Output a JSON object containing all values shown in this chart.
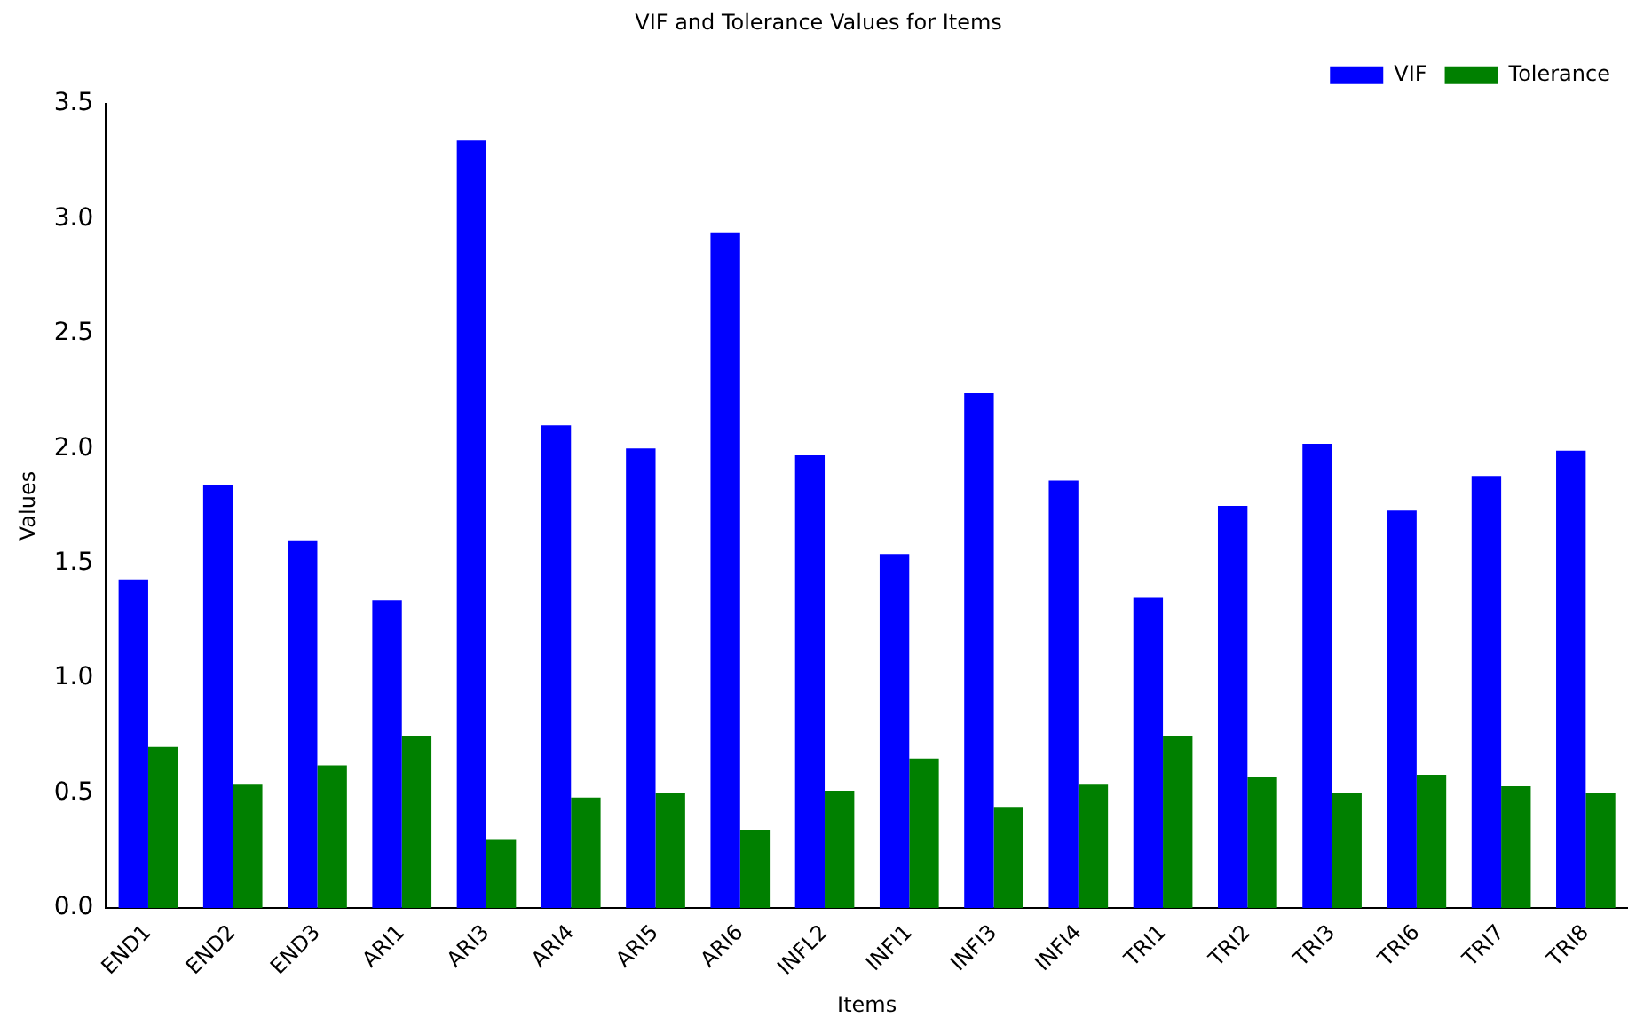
{
  "chart_data": {
    "type": "bar",
    "title": "VIF and Tolerance Values for Items",
    "xlabel": "Items",
    "ylabel": "Values",
    "categories": [
      "END1",
      "END2",
      "END3",
      "ARI1",
      "ARI3",
      "ARI4",
      "ARI5",
      "ARI6",
      "INFL2",
      "INFI1",
      "INFI3",
      "INFI4",
      "TRI1",
      "TRI2",
      "TRI3",
      "TRI6",
      "TRI7",
      "TRI8"
    ],
    "series": [
      {
        "name": "VIF",
        "color": "#0000ff",
        "values": [
          1.43,
          1.84,
          1.6,
          1.34,
          3.34,
          2.1,
          2.0,
          2.94,
          1.97,
          1.54,
          2.24,
          1.86,
          1.35,
          1.75,
          2.02,
          1.73,
          1.88,
          1.99
        ]
      },
      {
        "name": "Tolerance",
        "color": "#008000",
        "values": [
          0.7,
          0.54,
          0.62,
          0.75,
          0.3,
          0.48,
          0.5,
          0.34,
          0.51,
          0.65,
          0.44,
          0.54,
          0.75,
          0.57,
          0.5,
          0.58,
          0.53,
          0.5
        ]
      }
    ],
    "ylim": [
      0,
      3.5
    ],
    "yticks": [
      {
        "value": 0,
        "label": "0.0"
      },
      0.5,
      {
        "value": 1,
        "label": "1.0"
      },
      1.5,
      {
        "value": 2,
        "label": "2.0"
      },
      2.5,
      {
        "value": 3,
        "label": "3.0"
      },
      3.5
    ],
    "grid": false,
    "legend": "top right"
  }
}
